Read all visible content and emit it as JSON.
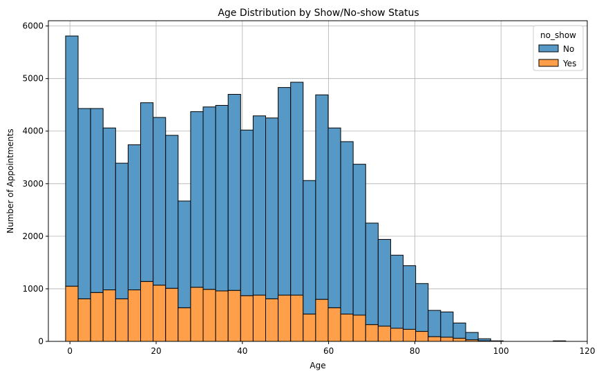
{
  "chart_data": {
    "type": "bar",
    "stacked": true,
    "title": "Age Distribution by Show/No-show Status",
    "xlabel": "Age",
    "ylabel": "Number of Appointments",
    "xlim": [
      -5,
      120
    ],
    "ylim": [
      0,
      6100
    ],
    "xticks": [
      0,
      20,
      40,
      60,
      80,
      100,
      120
    ],
    "yticks": [
      0,
      1000,
      2000,
      3000,
      4000,
      5000,
      6000
    ],
    "grid": true,
    "legend": {
      "title": "no_show",
      "placement": "top-right"
    },
    "bin_start": -1,
    "bin_width": 2.9,
    "series": [
      {
        "name": "No",
        "color": "#5799c6",
        "values": [
          4760,
          3620,
          3500,
          3080,
          2580,
          2760,
          3400,
          3190,
          2910,
          2030,
          3340,
          3470,
          3530,
          3730,
          3150,
          3410,
          3440,
          3950,
          4050,
          2540,
          3890,
          3420,
          3280,
          2870,
          1930,
          1650,
          1390,
          1210,
          910,
          500,
          480,
          290,
          140,
          40,
          10,
          0,
          0,
          0,
          0,
          10
        ]
      },
      {
        "name": "Yes",
        "color": "#ff9f4a",
        "values": [
          1050,
          810,
          930,
          980,
          810,
          980,
          1140,
          1070,
          1010,
          640,
          1030,
          990,
          960,
          970,
          870,
          880,
          810,
          880,
          880,
          520,
          800,
          640,
          520,
          500,
          320,
          290,
          250,
          230,
          190,
          90,
          80,
          60,
          30,
          10,
          0,
          0,
          0,
          0,
          0,
          0
        ]
      }
    ]
  }
}
